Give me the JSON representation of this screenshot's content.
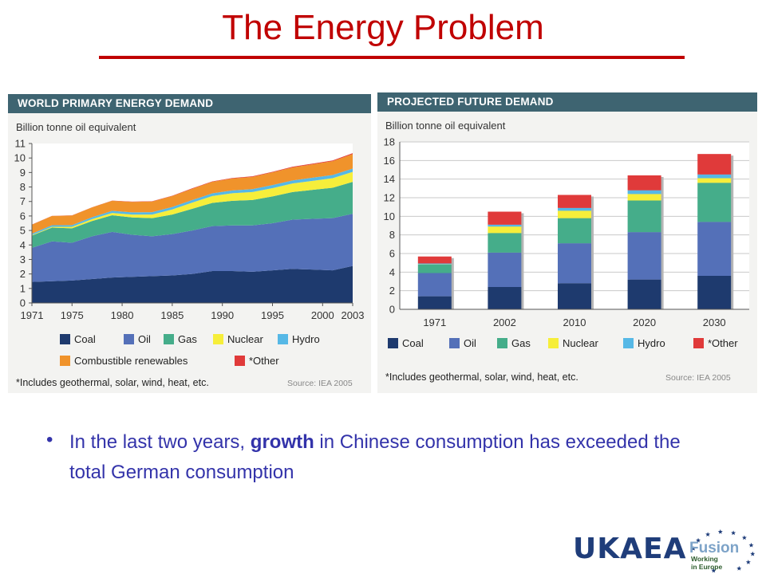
{
  "slide": {
    "title": "The Energy Problem",
    "bullet_before": "In the last two years, ",
    "bullet_bold": "growth",
    "bullet_after": " in Chinese consumption has exceeded the total German consumption",
    "logo_text": "UKAEA",
    "fusion_logo": {
      "word": "Fusion",
      "line2": "Working",
      "line3": "in Europe"
    }
  },
  "colors": {
    "Coal": "#1e3a6e",
    "Oil": "#5470b8",
    "Gas": "#45ad8a",
    "Nuclear": "#f6ee3a",
    "Hydro": "#56b8e6",
    "Combustible renewables": "#f0932b",
    "*Other": "#e03a3a",
    "title": "#c00000",
    "header": "#3e6471",
    "bullet": "#3333aa"
  },
  "chart_data": [
    {
      "type": "area",
      "title": "WORLD PRIMARY ENERGY DEMAND",
      "ylabel": "Billion tonne oil equivalent",
      "x": [
        1971,
        1973,
        1975,
        1977,
        1979,
        1981,
        1983,
        1985,
        1987,
        1989,
        1991,
        1993,
        1995,
        1997,
        1999,
        2001,
        2003
      ],
      "x_ticks": [
        "1971",
        "1975",
        "1980",
        "1985",
        "1990",
        "1995",
        "2000",
        "2003"
      ],
      "y_ticks": [
        "0",
        "1",
        "2",
        "3",
        "4",
        "5",
        "6",
        "7",
        "8",
        "9",
        "10",
        "11"
      ],
      "ylim": [
        0,
        11
      ],
      "series": [
        {
          "name": "Coal",
          "values": [
            1.45,
            1.5,
            1.55,
            1.65,
            1.75,
            1.8,
            1.85,
            1.9,
            2.0,
            2.2,
            2.2,
            2.15,
            2.25,
            2.35,
            2.3,
            2.25,
            2.55
          ]
        },
        {
          "name": "Oil",
          "values": [
            2.35,
            2.75,
            2.6,
            2.95,
            3.15,
            2.9,
            2.75,
            2.85,
            3.0,
            3.1,
            3.15,
            3.2,
            3.25,
            3.4,
            3.5,
            3.6,
            3.6
          ]
        },
        {
          "name": "Gas",
          "values": [
            0.85,
            0.95,
            1.0,
            1.05,
            1.15,
            1.2,
            1.25,
            1.35,
            1.5,
            1.6,
            1.7,
            1.75,
            1.85,
            1.9,
            2.0,
            2.1,
            2.2
          ]
        },
        {
          "name": "Nuclear",
          "values": [
            0.03,
            0.05,
            0.1,
            0.13,
            0.16,
            0.2,
            0.25,
            0.35,
            0.42,
            0.48,
            0.52,
            0.55,
            0.57,
            0.59,
            0.62,
            0.66,
            0.69
          ]
        },
        {
          "name": "Hydro",
          "values": [
            0.1,
            0.11,
            0.12,
            0.13,
            0.14,
            0.15,
            0.16,
            0.17,
            0.18,
            0.18,
            0.19,
            0.2,
            0.21,
            0.21,
            0.22,
            0.22,
            0.23
          ]
        },
        {
          "name": "Combustible renewables",
          "values": [
            0.62,
            0.64,
            0.66,
            0.68,
            0.7,
            0.72,
            0.74,
            0.76,
            0.78,
            0.8,
            0.83,
            0.85,
            0.88,
            0.9,
            0.92,
            0.95,
            1.0
          ]
        },
        {
          "name": "*Other",
          "values": [
            0.01,
            0.01,
            0.01,
            0.01,
            0.01,
            0.02,
            0.02,
            0.02,
            0.03,
            0.03,
            0.03,
            0.04,
            0.04,
            0.05,
            0.05,
            0.05,
            0.06
          ]
        }
      ],
      "footnote": "*Includes geothermal, solar, wind, heat, etc.",
      "source": "Source: IEA 2005"
    },
    {
      "type": "bar",
      "stacked": true,
      "title": "PROJECTED FUTURE DEMAND",
      "ylabel": "Billion tonne oil equivalent",
      "categories": [
        "1971",
        "2002",
        "2010",
        "2020",
        "2030"
      ],
      "y_ticks": [
        "0",
        "2",
        "4",
        "6",
        "8",
        "10",
        "12",
        "14",
        "16",
        "18"
      ],
      "ylim": [
        0,
        18
      ],
      "series": [
        {
          "name": "Coal",
          "values": [
            1.4,
            2.4,
            2.8,
            3.2,
            3.6
          ]
        },
        {
          "name": "Oil",
          "values": [
            2.5,
            3.7,
            4.3,
            5.1,
            5.8
          ]
        },
        {
          "name": "Gas",
          "values": [
            0.9,
            2.1,
            2.7,
            3.4,
            4.2
          ]
        },
        {
          "name": "Nuclear",
          "values": [
            0.03,
            0.7,
            0.8,
            0.7,
            0.5
          ]
        },
        {
          "name": "Hydro",
          "values": [
            0.1,
            0.2,
            0.3,
            0.4,
            0.4
          ]
        },
        {
          "name": "*Other",
          "values": [
            0.75,
            1.4,
            1.4,
            1.6,
            2.2
          ]
        }
      ],
      "footnote": "*Includes geothermal, solar, wind, heat, etc.",
      "source": "Source: IEA 2005"
    }
  ]
}
